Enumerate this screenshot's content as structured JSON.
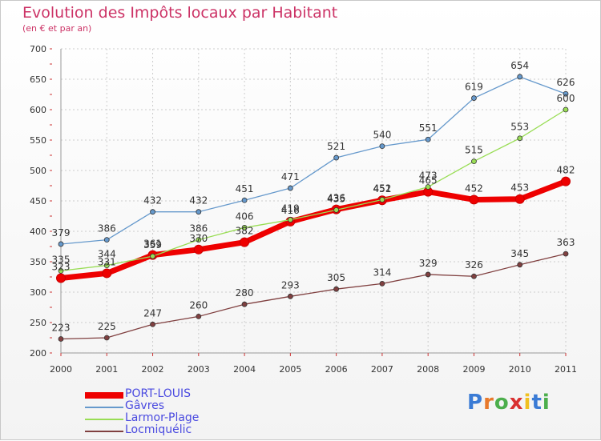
{
  "chart_data": {
    "type": "line",
    "title": "Evolution des Impôts locaux par Habitant",
    "subtitle": "(en € et par an)",
    "x": [
      "2000",
      "2001",
      "2002",
      "2003",
      "2004",
      "2005",
      "2006",
      "2007",
      "2008",
      "2009",
      "2010",
      "2011"
    ],
    "ylim": [
      200,
      700
    ],
    "yticks": [
      200,
      250,
      300,
      350,
      400,
      450,
      500,
      550,
      600,
      650,
      700
    ],
    "grid": true,
    "legend_position": "bottom-left",
    "series": [
      {
        "name": "PORT-LOUIS",
        "color": "#ee0000",
        "values": [
          323,
          331,
          361,
          370,
          382,
          416,
          436,
          451,
          465,
          452,
          453,
          482
        ]
      },
      {
        "name": "Gâvres",
        "color": "#6699cc",
        "values": [
          379,
          386,
          432,
          432,
          451,
          471,
          521,
          540,
          551,
          619,
          654,
          626
        ]
      },
      {
        "name": "Larmor-Plage",
        "color": "#99dd55",
        "values": [
          335,
          344,
          359,
          386,
          406,
          419,
          435,
          452,
          473,
          515,
          553,
          600
        ]
      },
      {
        "name": "Locmiquélic",
        "color": "#804040",
        "values": [
          223,
          225,
          247,
          260,
          280,
          293,
          305,
          314,
          329,
          326,
          345,
          363
        ]
      }
    ]
  },
  "brand": {
    "text": "Proxiti",
    "colors": [
      "#3a7bd5",
      "#e8792b",
      "#4cae4c",
      "#d93030",
      "#f0c020",
      "#3a7bd5",
      "#4cae4c"
    ]
  }
}
